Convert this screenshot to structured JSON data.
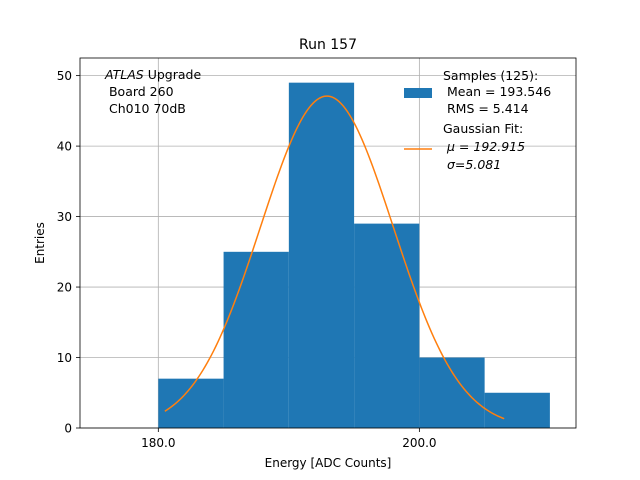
{
  "chart_data": {
    "type": "bar",
    "title": "Run 157",
    "xlabel": "Energy [ADC Counts]",
    "ylabel": "Entries",
    "xlim": [
      174.0,
      212.0
    ],
    "ylim": [
      0,
      52.5
    ],
    "grid": true,
    "x_ticks": [
      {
        "value": 180.0,
        "label": "180.0"
      },
      {
        "value": 200.0,
        "label": "200.0"
      }
    ],
    "y_ticks": [
      {
        "value": 0,
        "label": "0"
      },
      {
        "value": 10,
        "label": "10"
      },
      {
        "value": 20,
        "label": "20"
      },
      {
        "value": 30,
        "label": "30"
      },
      {
        "value": 40,
        "label": "40"
      },
      {
        "value": 50,
        "label": "50"
      }
    ],
    "annotation": {
      "italic": "ATLAS",
      "rest": " Upgrade",
      "line2": " Board 260",
      "line3": " Ch010 70dB"
    },
    "histogram": {
      "name": "Samples (125):",
      "stats": [
        " Mean = 193.546",
        " RMS = 5.414"
      ],
      "color": "#1f77b4",
      "bin_edges": [
        180.0,
        185.0,
        190.0,
        195.0,
        200.0,
        205.0,
        210.0
      ],
      "counts": [
        7,
        25,
        49,
        29,
        10,
        5
      ]
    },
    "fit": {
      "name": "Gaussian Fit:",
      "mu_label": "μ = 192.915",
      "sigma_label": "σ=5.081",
      "color": "#ff7f0e",
      "mu": 192.915,
      "sigma": 5.081,
      "amplitude": 47.1,
      "x_range": [
        180.5,
        206.5
      ]
    },
    "legend_position": "top-right"
  }
}
